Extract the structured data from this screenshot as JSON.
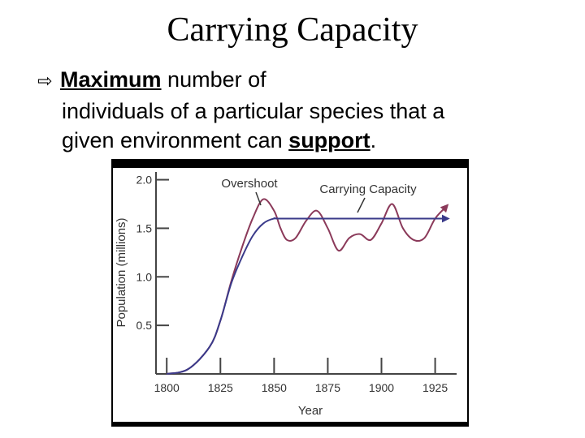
{
  "slide": {
    "title": "Carrying Capacity",
    "bullet": {
      "word1": "Maximum",
      "rest_line1": " number of",
      "line2": "individuals of a particular species that a",
      "line3_pre": "given environment can ",
      "word2": "support",
      "line3_post": "."
    }
  },
  "chart_data": {
    "type": "line",
    "xlabel": "Year",
    "ylabel": "Population (millions)",
    "xlim": [
      1795,
      1935
    ],
    "ylim": [
      0,
      2.08
    ],
    "x_ticks": [
      1800,
      1825,
      1850,
      1875,
      1900,
      1925
    ],
    "y_ticks": [
      0.5,
      1.0,
      1.5,
      2.0
    ],
    "x_tick_labels": [
      "1800",
      "1825",
      "1850",
      "1875",
      "1900",
      "1925"
    ],
    "y_tick_labels": [
      "0.5",
      "1.0",
      "1.5",
      "2.0"
    ],
    "series": [
      {
        "name": "Overshoot",
        "color": "#8b3a5a",
        "x": [
          1800,
          1810,
          1820,
          1825,
          1830,
          1835,
          1840,
          1845,
          1850,
          1853,
          1856,
          1860,
          1865,
          1870,
          1875,
          1880,
          1885,
          1890,
          1895,
          1900,
          1905,
          1910,
          1915,
          1920,
          1925,
          1930
        ],
        "y": [
          0,
          0.05,
          0.28,
          0.55,
          0.95,
          1.3,
          1.6,
          1.8,
          1.68,
          1.5,
          1.38,
          1.4,
          1.58,
          1.68,
          1.5,
          1.27,
          1.4,
          1.44,
          1.38,
          1.55,
          1.75,
          1.5,
          1.38,
          1.4,
          1.6,
          1.72
        ]
      },
      {
        "name": "Carrying Capacity",
        "color": "#3a3a8a",
        "x": [
          1800,
          1810,
          1820,
          1825,
          1830,
          1835,
          1840,
          1845,
          1850,
          1855,
          1900,
          1930
        ],
        "y": [
          0,
          0.05,
          0.28,
          0.55,
          0.93,
          1.2,
          1.42,
          1.55,
          1.6,
          1.6,
          1.6,
          1.6
        ]
      }
    ],
    "annotations": [
      "Overshoot",
      "Carrying Capacity"
    ]
  }
}
